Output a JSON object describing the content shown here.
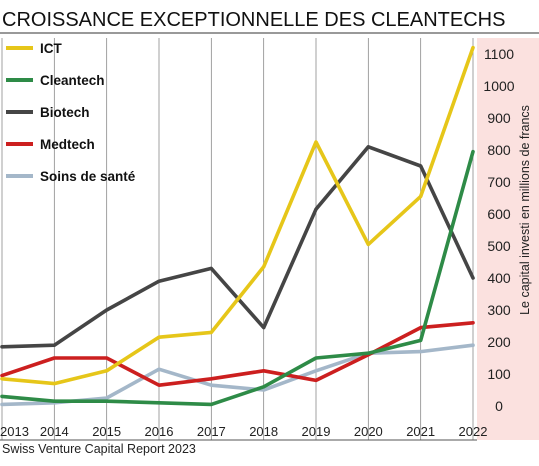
{
  "chart_data": {
    "type": "line",
    "title": "CROISSANCE EXCEPTIONNELLE DES CLEANTECHS",
    "ylabel": "Le capital investi en millions de francs",
    "source": "Swiss Venture Capital Report 2023",
    "x": [
      "2013",
      "2014",
      "2015",
      "2016",
      "2017",
      "2018",
      "2019",
      "2020",
      "2021",
      "2022"
    ],
    "ylim": [
      -50,
      1150
    ],
    "yticks": [
      0,
      100,
      200,
      300,
      400,
      500,
      600,
      700,
      800,
      900,
      1000,
      1100
    ],
    "legend_position": "top-left",
    "series": [
      {
        "name": "ICT",
        "color": "#e6c619",
        "values": [
          85,
          70,
          110,
          215,
          230,
          435,
          825,
          505,
          655,
          1120
        ]
      },
      {
        "name": "Cleantech",
        "color": "#2e8b47",
        "values": [
          30,
          15,
          15,
          10,
          5,
          60,
          150,
          165,
          205,
          795
        ]
      },
      {
        "name": "Biotech",
        "color": "#454545",
        "values": [
          185,
          190,
          300,
          390,
          430,
          245,
          615,
          810,
          750,
          400
        ]
      },
      {
        "name": "Medtech",
        "color": "#cc1f1f",
        "values": [
          95,
          150,
          150,
          65,
          85,
          110,
          80,
          160,
          245,
          260
        ]
      },
      {
        "name": "Soins de santé",
        "color": "#a4b7c9",
        "values": [
          5,
          10,
          25,
          115,
          65,
          50,
          110,
          165,
          170,
          190
        ]
      }
    ]
  }
}
